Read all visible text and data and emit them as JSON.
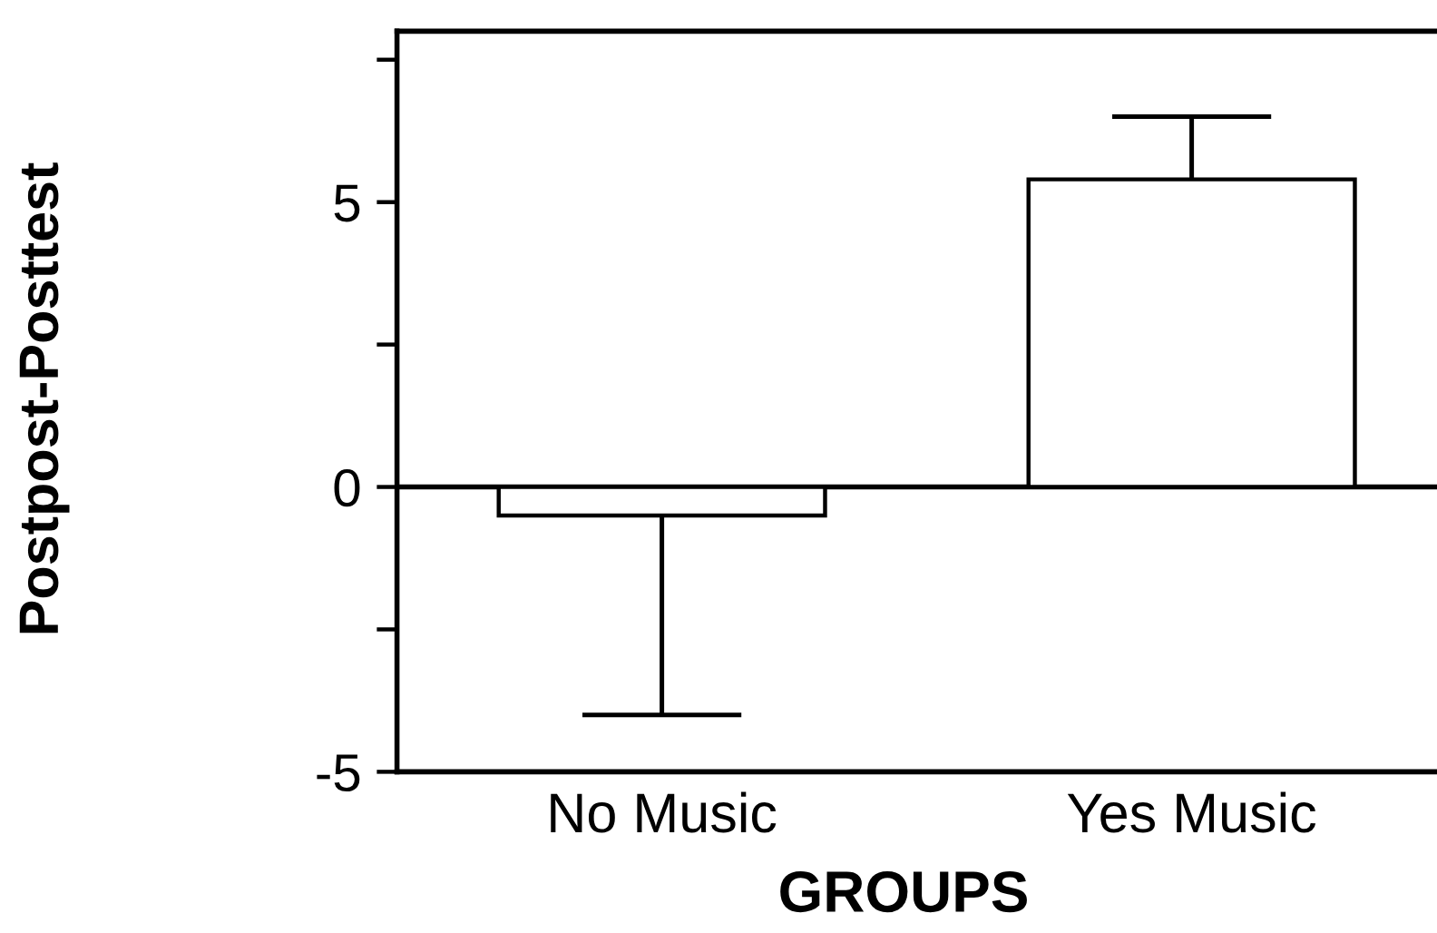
{
  "chart_data": {
    "type": "bar",
    "xlabel": "GROUPS",
    "ylabel": "Postpost-Posttest",
    "categories": [
      "No Music",
      "Yes Music"
    ],
    "values": [
      -0.5,
      5.4
    ],
    "color": "#ffffff",
    "errors": [
      [
        -4.0,
        -0.5
      ],
      [
        5.4,
        6.5
      ]
    ],
    "ylim": [
      -5,
      8
    ],
    "yticks": [
      -5,
      {
        "value": -2.5,
        "label": null
      },
      0,
      {
        "value": 2.5,
        "label": null
      },
      5,
      {
        "value": 7.5,
        "label": null
      }
    ],
    "ref_lines": [
      {
        "axis": "y",
        "value": 0
      }
    ],
    "grid": false
  }
}
